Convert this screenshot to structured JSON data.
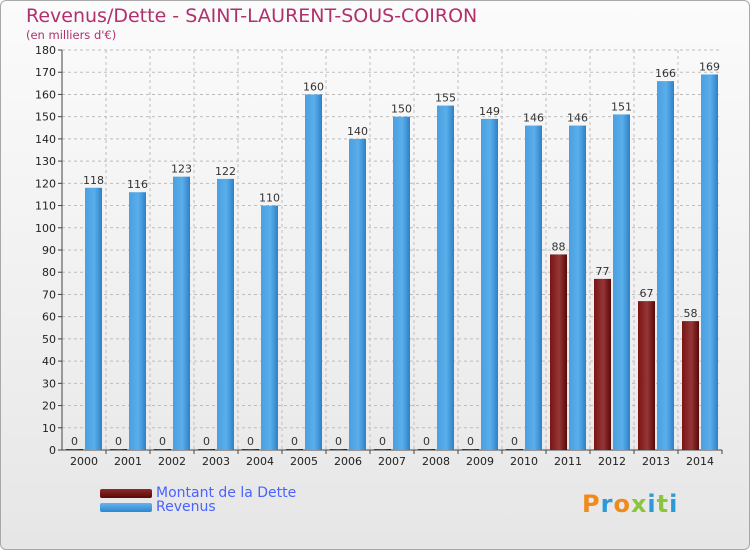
{
  "header": {
    "title": "Revenus/Dette - SAINT-LAURENT-SOUS-COIRON",
    "subtitle": "(en milliers d'€)"
  },
  "legend": {
    "debt_label": "Montant de la Dette",
    "revenue_label": "Revenus"
  },
  "logo": {
    "text": "Proxiti"
  },
  "colors": {
    "debt": "#6b0a0a",
    "debt_light": "#8e3030",
    "revenue": "#2e86d0",
    "revenue_light": "#55a8e6",
    "grid": "#bdbdbd",
    "title": "#b0306e",
    "legend_text": "#4a62ff"
  },
  "chart_data": {
    "type": "bar",
    "title": "Revenus/Dette - SAINT-LAURENT-SOUS-COIRON",
    "ylabel": "(en milliers d'€)",
    "xlabel": "",
    "ylim": [
      0,
      180
    ],
    "ytick_step": 10,
    "grid": true,
    "legend_position": "bottom-left",
    "categories": [
      "2000",
      "2001",
      "2002",
      "2003",
      "2004",
      "2005",
      "2006",
      "2007",
      "2008",
      "2009",
      "2010",
      "2011",
      "2012",
      "2013",
      "2014"
    ],
    "series": [
      {
        "name": "Montant de la Dette",
        "values": [
          0,
          0,
          0,
          0,
          0,
          0,
          0,
          0,
          0,
          0,
          0,
          88,
          77,
          67,
          58
        ]
      },
      {
        "name": "Revenus",
        "values": [
          118,
          116,
          123,
          122,
          110,
          160,
          140,
          150,
          155,
          149,
          146,
          146,
          151,
          166,
          169
        ]
      }
    ]
  }
}
